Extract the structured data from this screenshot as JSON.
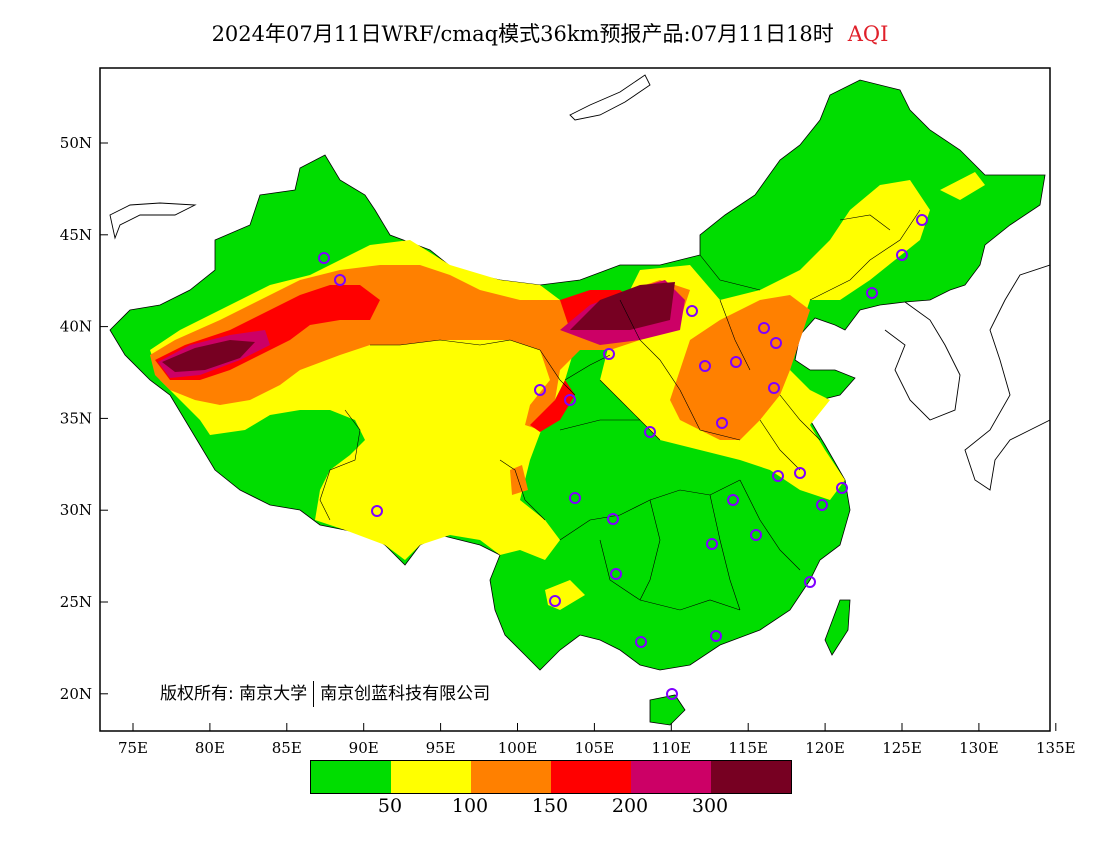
{
  "title": {
    "main": "2024年07月11日WRF/cmaq模式36km预报产品:07月11日18时",
    "variable": "AQI"
  },
  "map": {
    "lat_labels": [
      "50N",
      "45N",
      "40N",
      "35N",
      "30N",
      "25N",
      "20N"
    ],
    "lon_labels": [
      "75E",
      "80E",
      "85E",
      "90E",
      "95E",
      "100E",
      "105E",
      "110E",
      "115E",
      "120E",
      "125E",
      "130E",
      "135E"
    ],
    "lat_range": [
      18,
      54
    ],
    "lon_range": [
      73,
      135
    ],
    "region": "China",
    "colors": {
      "good": "#00dd00",
      "moderate": "#ffff00",
      "usg": "#ff8000",
      "unhealthy": "#ff0000",
      "very_unhealthy": "#cc0066",
      "hazardous": "#770022",
      "station_marker": "#8000ff"
    }
  },
  "copyright": {
    "label": "版权所有:",
    "owner1": "南京大学",
    "owner2": "南京创蓝科技有限公司"
  },
  "legend": {
    "colors": [
      "#00dd00",
      "#ffff00",
      "#ff8000",
      "#ff0000",
      "#cc0066",
      "#770022"
    ],
    "labels": [
      "50",
      "100",
      "150",
      "200",
      "300"
    ]
  }
}
